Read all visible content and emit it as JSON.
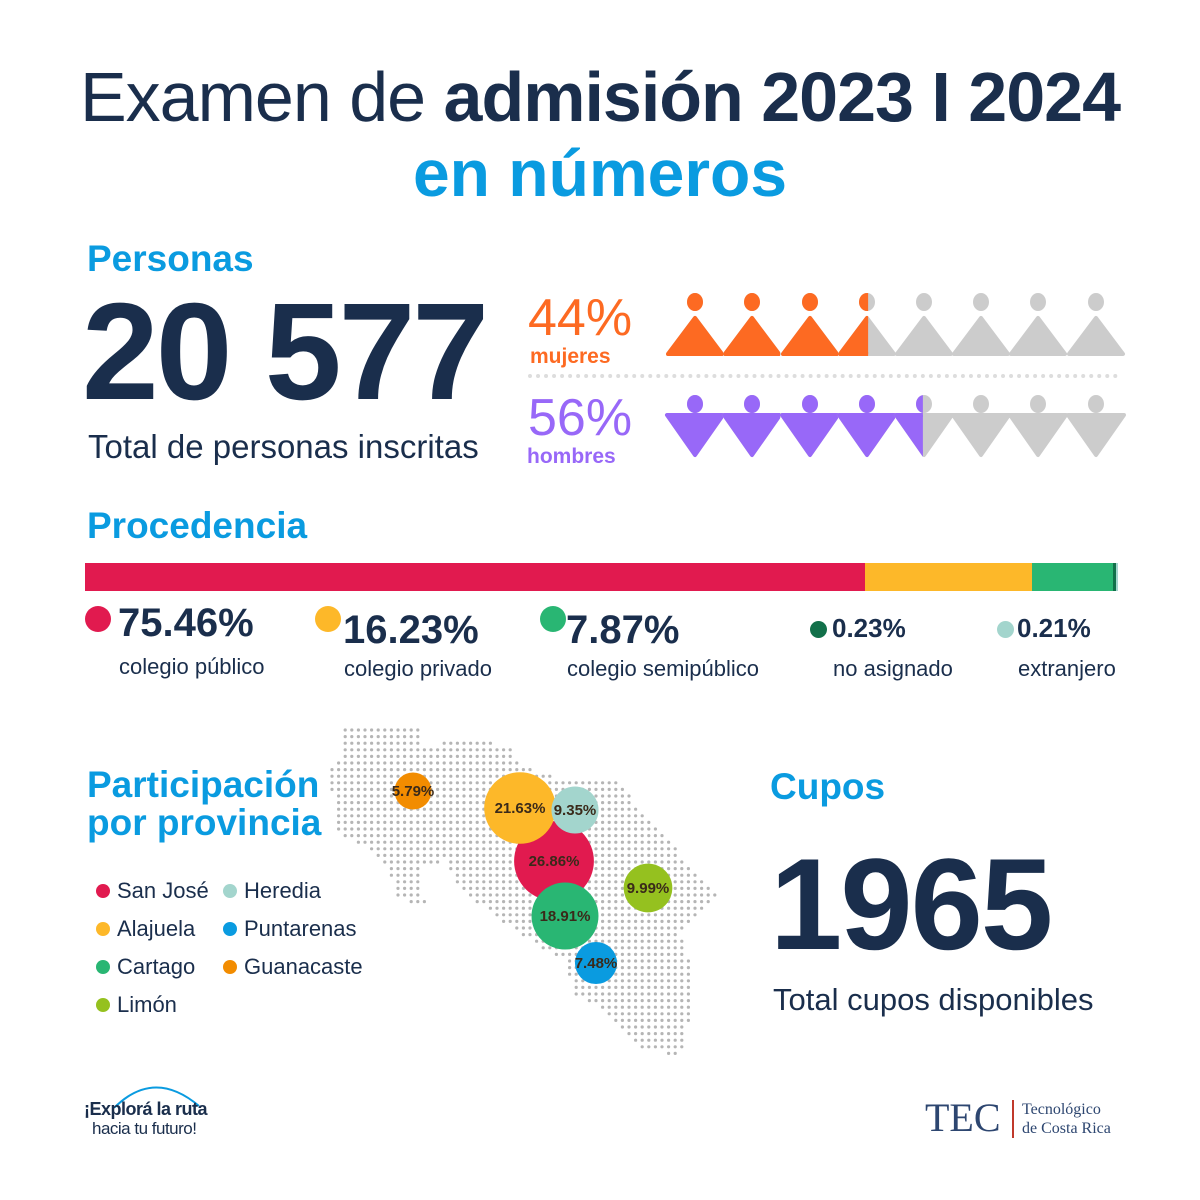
{
  "header": {
    "title_regular": "Examen de ",
    "title_bold": "admisión 2023 I 2024",
    "subtitle": "en números"
  },
  "personas": {
    "heading": "Personas",
    "total": "20 577",
    "total_label": "Total de personas inscritas",
    "women": {
      "pct": "44%",
      "label": "mujeres",
      "color": "#fd6a22",
      "value": 44
    },
    "men": {
      "pct": "56%",
      "label": "hombres",
      "color": "#9868f8",
      "value": 56
    }
  },
  "procedencia": {
    "heading": "Procedencia",
    "items": [
      {
        "pct": "75.46%",
        "label": "colegio público",
        "color": "#e11a4f",
        "value": 75.46
      },
      {
        "pct": "16.23%",
        "label": "colegio privado",
        "color": "#fdb829",
        "value": 16.23
      },
      {
        "pct": "7.87%",
        "label": "colegio semipúblico",
        "color": "#29b673",
        "value": 7.87
      },
      {
        "pct": "0.23%",
        "label": "no asignado",
        "color": "#12704a",
        "value": 0.23
      },
      {
        "pct": "0.21%",
        "label": "extranjero",
        "color": "#a3d5cd",
        "value": 0.21
      }
    ]
  },
  "provincias": {
    "heading_line1": "Participación",
    "heading_line2": "por provincia",
    "items": [
      {
        "name": "San José",
        "pct": "26.86%",
        "value": 26.86,
        "color": "#e11a4f"
      },
      {
        "name": "Alajuela",
        "pct": "21.63%",
        "value": 21.63,
        "color": "#fdb829"
      },
      {
        "name": "Cartago",
        "pct": "18.91%",
        "value": 18.91,
        "color": "#29b673"
      },
      {
        "name": "Limón",
        "pct": "9.99%",
        "value": 9.99,
        "color": "#95c11f"
      },
      {
        "name": "Heredia",
        "pct": "9.35%",
        "value": 9.35,
        "color": "#a3d5cd"
      },
      {
        "name": "Puntarenas",
        "pct": "7.48%",
        "value": 7.48,
        "color": "#0a9be0"
      },
      {
        "name": "Guanacaste",
        "pct": "5.79%",
        "value": 5.79,
        "color": "#f28c00"
      }
    ]
  },
  "cupos": {
    "heading": "Cupos",
    "total": "1965",
    "label": "Total cupos disponibles"
  },
  "footer": {
    "slogan_line1": "¡Explorá la ruta",
    "slogan_line2": "hacia tu futuro!",
    "logo": "TEC",
    "institution_line1": "Tecnológico",
    "institution_line2": "de Costa Rica"
  },
  "chart_data": [
    {
      "type": "bar",
      "stacked": true,
      "title": "Procedencia",
      "categories": [
        "colegio público",
        "colegio privado",
        "colegio semipúblico",
        "no asignado",
        "extranjero"
      ],
      "values": [
        75.46,
        16.23,
        7.87,
        0.23,
        0.21
      ]
    },
    {
      "type": "pictogram",
      "title": "Personas",
      "categories": [
        "mujeres",
        "hombres"
      ],
      "values": [
        44,
        56
      ],
      "icons_total": 8
    },
    {
      "type": "bubble",
      "title": "Participación por provincia",
      "categories": [
        "San José",
        "Alajuela",
        "Cartago",
        "Limón",
        "Heredia",
        "Puntarenas",
        "Guanacaste"
      ],
      "values": [
        26.86,
        21.63,
        18.91,
        9.99,
        9.35,
        7.48,
        5.79
      ]
    }
  ]
}
